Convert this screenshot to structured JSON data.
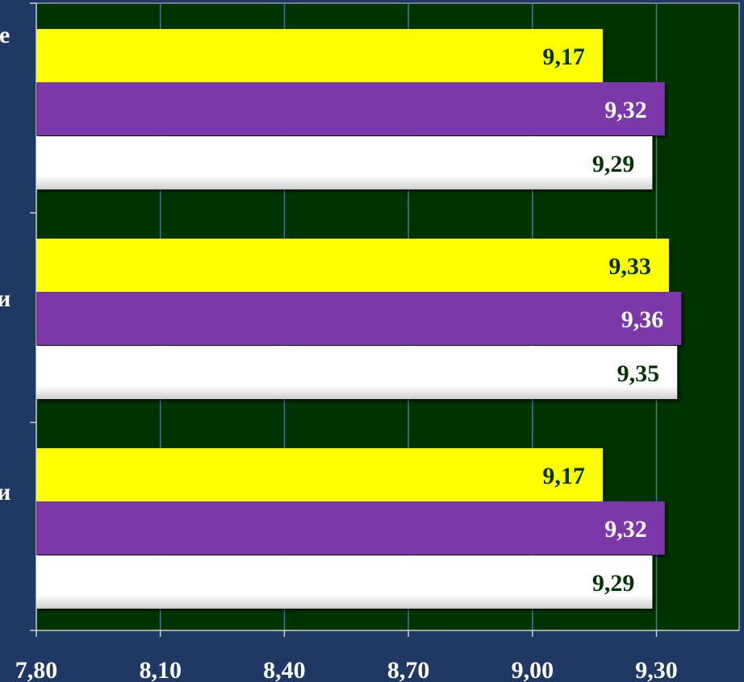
{
  "chart_data": {
    "type": "bar",
    "orientation": "horizontal",
    "categories": [
      "е",
      "и",
      "и"
    ],
    "category_label_font_weight": [
      "normal",
      "bold",
      "bold"
    ],
    "xlim": [
      7.8,
      9.5
    ],
    "x_ticks": [
      7.8,
      8.1,
      8.4,
      8.7,
      9.0,
      9.3
    ],
    "tick_labels": [
      "7,80",
      "8,10",
      "8,40",
      "8,70",
      "9,00",
      "9,30"
    ],
    "grid": true,
    "legend": "none",
    "series": [
      {
        "color": "#ffff00",
        "label_color": "#003300",
        "values": [
          9.17,
          9.33,
          9.17
        ],
        "labels": [
          "9,17",
          "9,33",
          "9,17"
        ]
      },
      {
        "color": "#7b38a8",
        "label_color": "#ffffff",
        "values": [
          9.32,
          9.36,
          9.32
        ],
        "labels": [
          "9,32",
          "9,36",
          "9,32"
        ]
      },
      {
        "color": "#ffffff",
        "label_color": "#003300",
        "values": [
          9.29,
          9.35,
          9.29
        ],
        "labels": [
          "9,29",
          "9,35",
          "9,29"
        ]
      }
    ]
  },
  "colors": {
    "page_background": "#1f3864",
    "plot_background": "#003300",
    "grid": "#3a7a9c",
    "axis": "#d0d0d0",
    "tick_text": "#ffffff"
  }
}
